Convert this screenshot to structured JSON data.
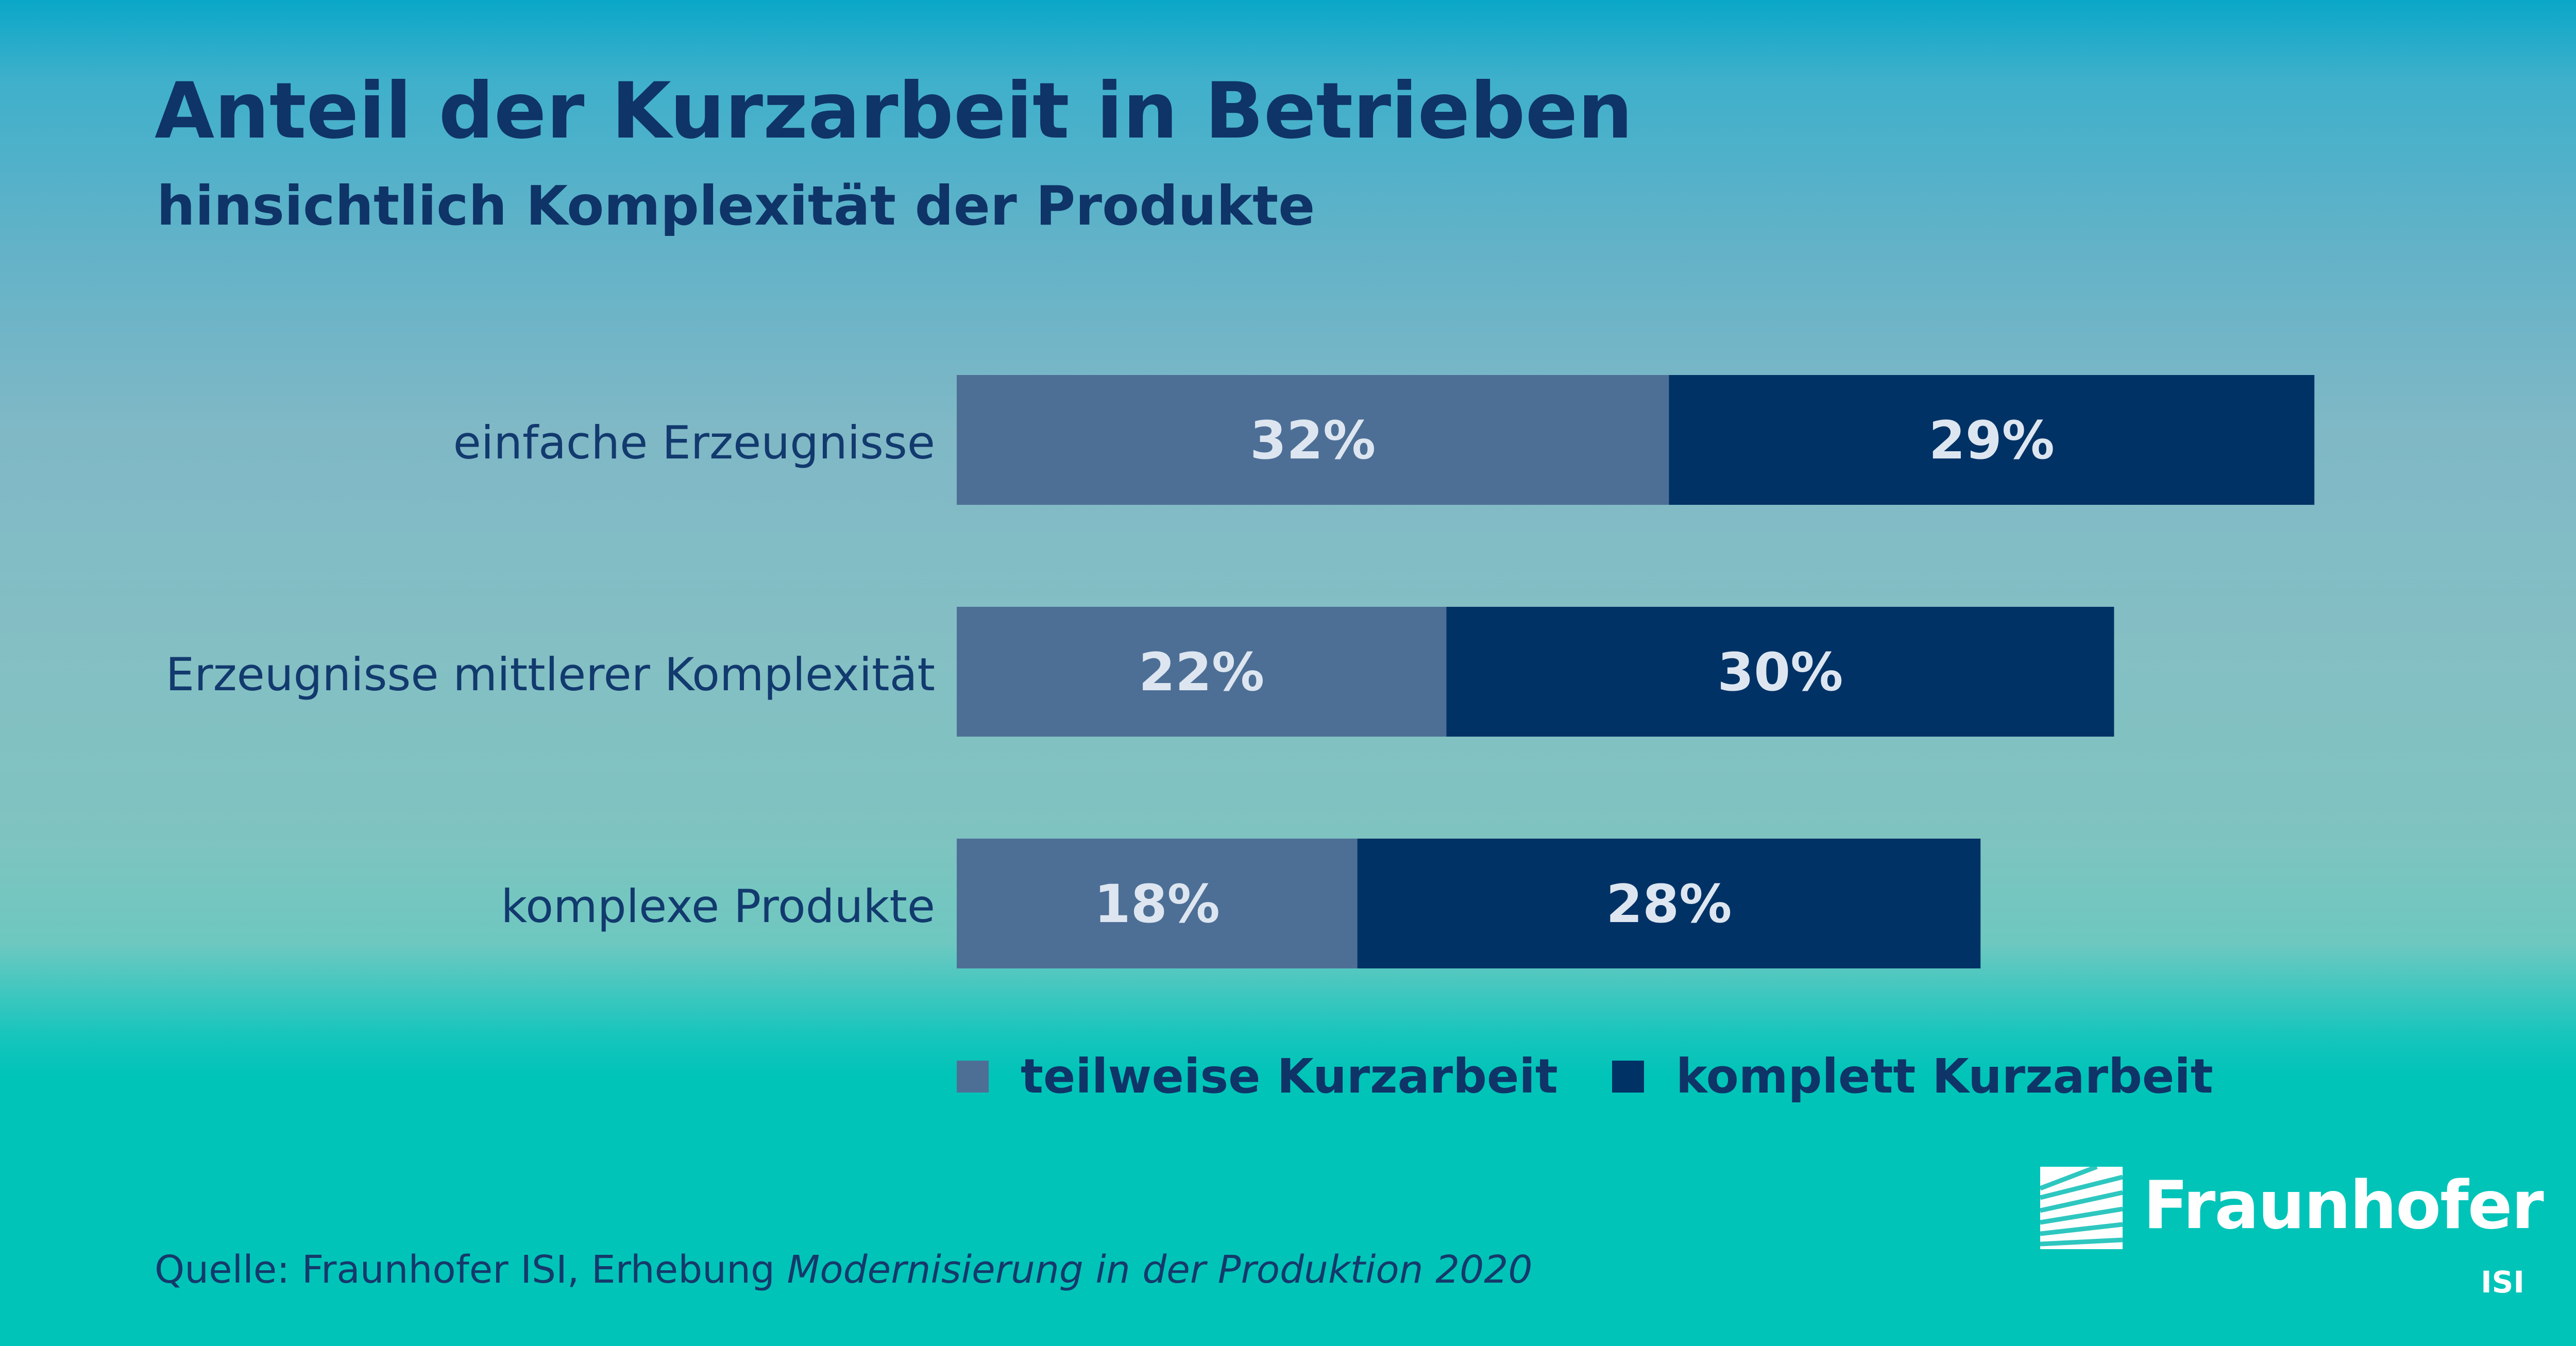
{
  "title": "Anteil der Kurzarbeit in Betrieben",
  "subtitle": "hinsichtlich Komplexität der Produkte",
  "source": {
    "prefix": "Quelle: Fraunhofer ISI, Erhebung ",
    "italic": "Modernisierung in der Produktion 2020"
  },
  "logo": {
    "name": "Fraunhofer",
    "sub": "ISI"
  },
  "colors": {
    "teilweise": "#4d6f96",
    "komplett": "#003266",
    "label_text": "#dde6f0"
  },
  "chart_data": {
    "type": "bar",
    "orientation": "horizontal",
    "stacked": true,
    "categories": [
      "einfache Erzeugnisse",
      "Erzeugnisse mittlerer Komplexität",
      "komplexe Produkte"
    ],
    "series": [
      {
        "name": "teilweise Kurzarbeit",
        "values": [
          32,
          22,
          18
        ],
        "labels": [
          "32%",
          "22%",
          "18%"
        ],
        "color": "#4d6f96"
      },
      {
        "name": "komplett Kurzarbeit",
        "values": [
          29,
          30,
          28
        ],
        "labels": [
          "29%",
          "30%",
          "28%"
        ],
        "color": "#003266"
      }
    ],
    "unit": "%",
    "legend_position": "bottom",
    "grid": false
  }
}
